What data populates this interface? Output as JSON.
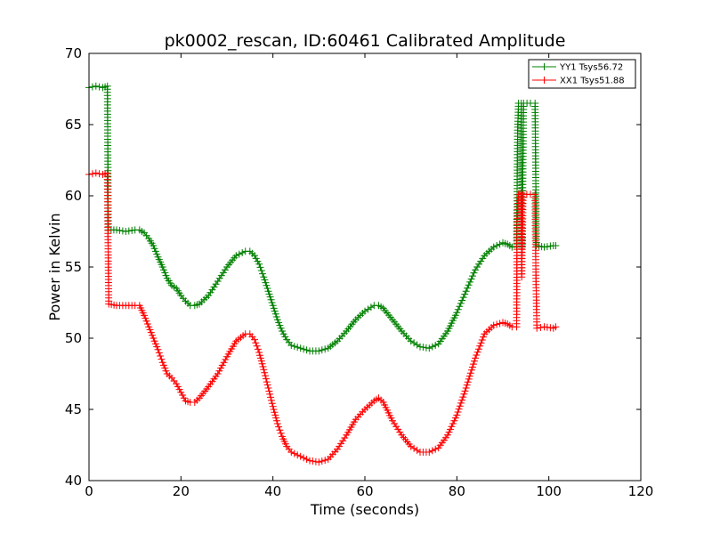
{
  "chart_data": {
    "type": "line",
    "title": "pk0002_rescan, ID:60461 Calibrated Amplitude",
    "xlabel": "Time (seconds)",
    "ylabel": "Power in Kelvin",
    "xlim": [
      0,
      120
    ],
    "ylim": [
      40,
      70
    ],
    "xticks": [
      0,
      20,
      40,
      60,
      80,
      100,
      120
    ],
    "yticks": [
      40,
      45,
      50,
      55,
      60,
      65,
      70
    ],
    "grid": false,
    "legend_position": "top-right",
    "marker": "+",
    "series": [
      {
        "name": "YY1 Tsys56.72",
        "color": "#008000",
        "points": [
          [
            0.0,
            67.6
          ],
          [
            1.5,
            67.7
          ],
          [
            3.0,
            67.6
          ],
          [
            4.0,
            67.7
          ],
          [
            4.2,
            57.6
          ],
          [
            6.0,
            57.6
          ],
          [
            8.0,
            57.5
          ],
          [
            10.0,
            57.6
          ],
          [
            11.0,
            57.6
          ],
          [
            12.0,
            57.4
          ],
          [
            13.0,
            57.0
          ],
          [
            14.0,
            56.5
          ],
          [
            15.0,
            55.7
          ],
          [
            16.0,
            55.0
          ],
          [
            17.0,
            54.2
          ],
          [
            18.0,
            53.7
          ],
          [
            19.0,
            53.5
          ],
          [
            20.0,
            53.0
          ],
          [
            21.0,
            52.6
          ],
          [
            22.0,
            52.3
          ],
          [
            23.0,
            52.3
          ],
          [
            24.0,
            52.4
          ],
          [
            26.0,
            53.0
          ],
          [
            28.0,
            54.0
          ],
          [
            30.0,
            55.0
          ],
          [
            32.0,
            55.8
          ],
          [
            34.0,
            56.1
          ],
          [
            35.0,
            56.1
          ],
          [
            36.0,
            55.8
          ],
          [
            37.0,
            55.2
          ],
          [
            38.0,
            54.3
          ],
          [
            39.0,
            53.3
          ],
          [
            40.0,
            52.3
          ],
          [
            41.0,
            51.3
          ],
          [
            42.0,
            50.5
          ],
          [
            43.0,
            49.9
          ],
          [
            44.0,
            49.5
          ],
          [
            46.0,
            49.3
          ],
          [
            48.0,
            49.1
          ],
          [
            50.0,
            49.1
          ],
          [
            52.0,
            49.3
          ],
          [
            54.0,
            49.8
          ],
          [
            56.0,
            50.5
          ],
          [
            58.0,
            51.3
          ],
          [
            60.0,
            51.9
          ],
          [
            62.0,
            52.3
          ],
          [
            63.0,
            52.3
          ],
          [
            64.0,
            52.1
          ],
          [
            66.0,
            51.3
          ],
          [
            68.0,
            50.5
          ],
          [
            70.0,
            49.8
          ],
          [
            72.0,
            49.4
          ],
          [
            74.0,
            49.3
          ],
          [
            76.0,
            49.6
          ],
          [
            78.0,
            50.5
          ],
          [
            80.0,
            51.8
          ],
          [
            82.0,
            53.3
          ],
          [
            84.0,
            54.8
          ],
          [
            86.0,
            55.8
          ],
          [
            88.0,
            56.4
          ],
          [
            90.0,
            56.7
          ],
          [
            91.0,
            56.6
          ],
          [
            92.0,
            56.4
          ],
          [
            93.0,
            56.4
          ],
          [
            93.2,
            64.4
          ],
          [
            93.4,
            66.5
          ],
          [
            94.0,
            66.5
          ],
          [
            94.2,
            56.4
          ],
          [
            94.5,
            66.5
          ],
          [
            96.0,
            66.5
          ],
          [
            97.0,
            66.5
          ],
          [
            97.3,
            56.5
          ],
          [
            99.0,
            56.4
          ],
          [
            101.0,
            56.5
          ],
          [
            101.5,
            56.5
          ]
        ]
      },
      {
        "name": "XX1 Tsys51.88",
        "color": "#ff0000",
        "points": [
          [
            0.0,
            61.5
          ],
          [
            1.5,
            61.6
          ],
          [
            3.0,
            61.5
          ],
          [
            4.0,
            61.6
          ],
          [
            4.1,
            58.0
          ],
          [
            4.3,
            52.4
          ],
          [
            6.0,
            52.3
          ],
          [
            8.0,
            52.3
          ],
          [
            10.0,
            52.3
          ],
          [
            11.0,
            52.3
          ],
          [
            12.0,
            51.6
          ],
          [
            13.0,
            50.8
          ],
          [
            14.0,
            50.0
          ],
          [
            15.0,
            49.2
          ],
          [
            16.0,
            48.3
          ],
          [
            17.0,
            47.5
          ],
          [
            18.0,
            47.2
          ],
          [
            19.0,
            46.8
          ],
          [
            20.0,
            46.2
          ],
          [
            21.0,
            45.6
          ],
          [
            22.0,
            45.5
          ],
          [
            23.0,
            45.5
          ],
          [
            24.0,
            45.8
          ],
          [
            26.0,
            46.6
          ],
          [
            28.0,
            47.5
          ],
          [
            30.0,
            48.7
          ],
          [
            32.0,
            49.8
          ],
          [
            34.0,
            50.3
          ],
          [
            35.0,
            50.3
          ],
          [
            36.0,
            49.9
          ],
          [
            37.0,
            49.0
          ],
          [
            38.0,
            47.8
          ],
          [
            39.0,
            46.5
          ],
          [
            40.0,
            45.2
          ],
          [
            41.0,
            44.0
          ],
          [
            42.0,
            43.1
          ],
          [
            43.0,
            42.4
          ],
          [
            44.0,
            42.0
          ],
          [
            46.0,
            41.7
          ],
          [
            48.0,
            41.4
          ],
          [
            50.0,
            41.3
          ],
          [
            52.0,
            41.5
          ],
          [
            54.0,
            42.2
          ],
          [
            56.0,
            43.2
          ],
          [
            58.0,
            44.3
          ],
          [
            60.0,
            45.0
          ],
          [
            62.0,
            45.6
          ],
          [
            63.0,
            45.8
          ],
          [
            64.0,
            45.5
          ],
          [
            66.0,
            44.2
          ],
          [
            68.0,
            43.2
          ],
          [
            70.0,
            42.4
          ],
          [
            72.0,
            42.0
          ],
          [
            74.0,
            42.0
          ],
          [
            76.0,
            42.3
          ],
          [
            78.0,
            43.2
          ],
          [
            80.0,
            44.6
          ],
          [
            82.0,
            46.5
          ],
          [
            84.0,
            48.6
          ],
          [
            86.0,
            50.3
          ],
          [
            88.0,
            50.9
          ],
          [
            90.0,
            51.1
          ],
          [
            91.0,
            51.0
          ],
          [
            92.0,
            50.8
          ],
          [
            93.0,
            50.8
          ],
          [
            93.1,
            58.2
          ],
          [
            93.4,
            60.1
          ],
          [
            94.0,
            60.2
          ],
          [
            94.1,
            54.3
          ],
          [
            94.4,
            60.1
          ],
          [
            96.0,
            60.1
          ],
          [
            97.0,
            60.1
          ],
          [
            97.2,
            54.2
          ],
          [
            97.4,
            50.7
          ],
          [
            99.0,
            50.8
          ],
          [
            101.0,
            50.7
          ],
          [
            101.5,
            50.8
          ]
        ]
      }
    ]
  }
}
